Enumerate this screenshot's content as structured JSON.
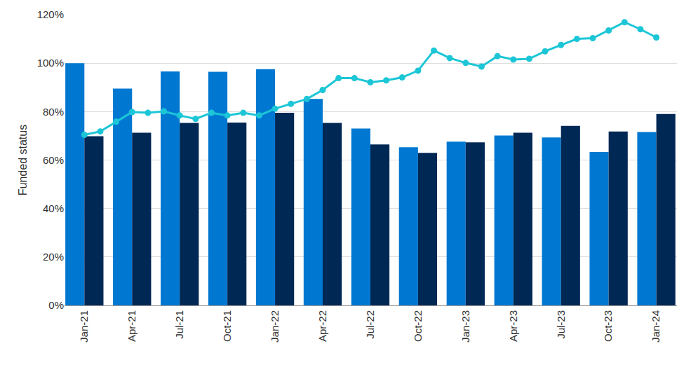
{
  "chart_data": {
    "type": "bar",
    "y_label": "Funded status",
    "categories": [
      "Jan-21",
      null,
      null,
      "Apr-21",
      null,
      null,
      "Jul-21",
      null,
      null,
      "Oct-21",
      null,
      null,
      "Jan-22",
      null,
      null,
      "Apr-22",
      null,
      null,
      "Jul-22",
      null,
      null,
      "Oct-22",
      null,
      null,
      "Jan-23",
      null,
      null,
      "Apr-23",
      null,
      null,
      "Jul-23",
      null,
      null,
      "Oct-23",
      null,
      null,
      "Jan-24"
    ],
    "series": [
      {
        "type": "bar",
        "color": "#0078d2",
        "values": [
          100.0,
          null,
          null,
          89.5,
          null,
          null,
          96.6,
          null,
          null,
          96.4,
          null,
          null,
          97.5,
          null,
          null,
          85.2,
          null,
          null,
          73.0,
          null,
          null,
          65.3,
          null,
          null,
          67.6,
          null,
          null,
          70.1,
          null,
          null,
          69.3,
          null,
          null,
          63.3,
          null,
          null,
          71.6
        ]
      },
      {
        "type": "bar",
        "color": "#002855",
        "values": [
          69.8,
          null,
          null,
          71.3,
          null,
          null,
          75.3,
          null,
          null,
          75.5,
          null,
          null,
          79.5,
          null,
          null,
          75.3,
          null,
          null,
          66.4,
          null,
          null,
          63.0,
          null,
          null,
          67.3,
          null,
          null,
          71.3,
          null,
          null,
          74.1,
          null,
          null,
          71.8,
          null,
          null,
          79.0
        ]
      },
      {
        "type": "line",
        "color": "#1cc6d6",
        "marker": "circle",
        "line_style": "solid",
        "values": [
          70.4,
          71.8,
          75.8,
          79.8,
          79.5,
          80.1,
          78.4,
          77.0,
          79.5,
          78.4,
          79.5,
          78.4,
          81.2,
          83.2,
          85.2,
          88.9,
          93.8,
          93.8,
          92.1,
          92.9,
          94.1,
          96.9,
          105.2,
          102.1,
          100.1,
          98.6,
          102.9,
          101.5,
          101.8,
          104.9,
          107.5,
          110.0,
          110.3,
          113.5,
          116.9,
          114.0,
          110.6
        ]
      }
    ],
    "ylim": [
      0,
      120
    ],
    "yticks": [
      {
        "value": 0,
        "label": "0%"
      },
      {
        "value": 20,
        "label": "20%"
      },
      {
        "value": 40,
        "label": "40%"
      },
      {
        "value": 60,
        "label": "60%"
      },
      {
        "value": 80,
        "label": "80%"
      },
      {
        "value": 100,
        "label": "100%"
      },
      {
        "value": 120,
        "label": "120%"
      }
    ],
    "grid": true
  }
}
